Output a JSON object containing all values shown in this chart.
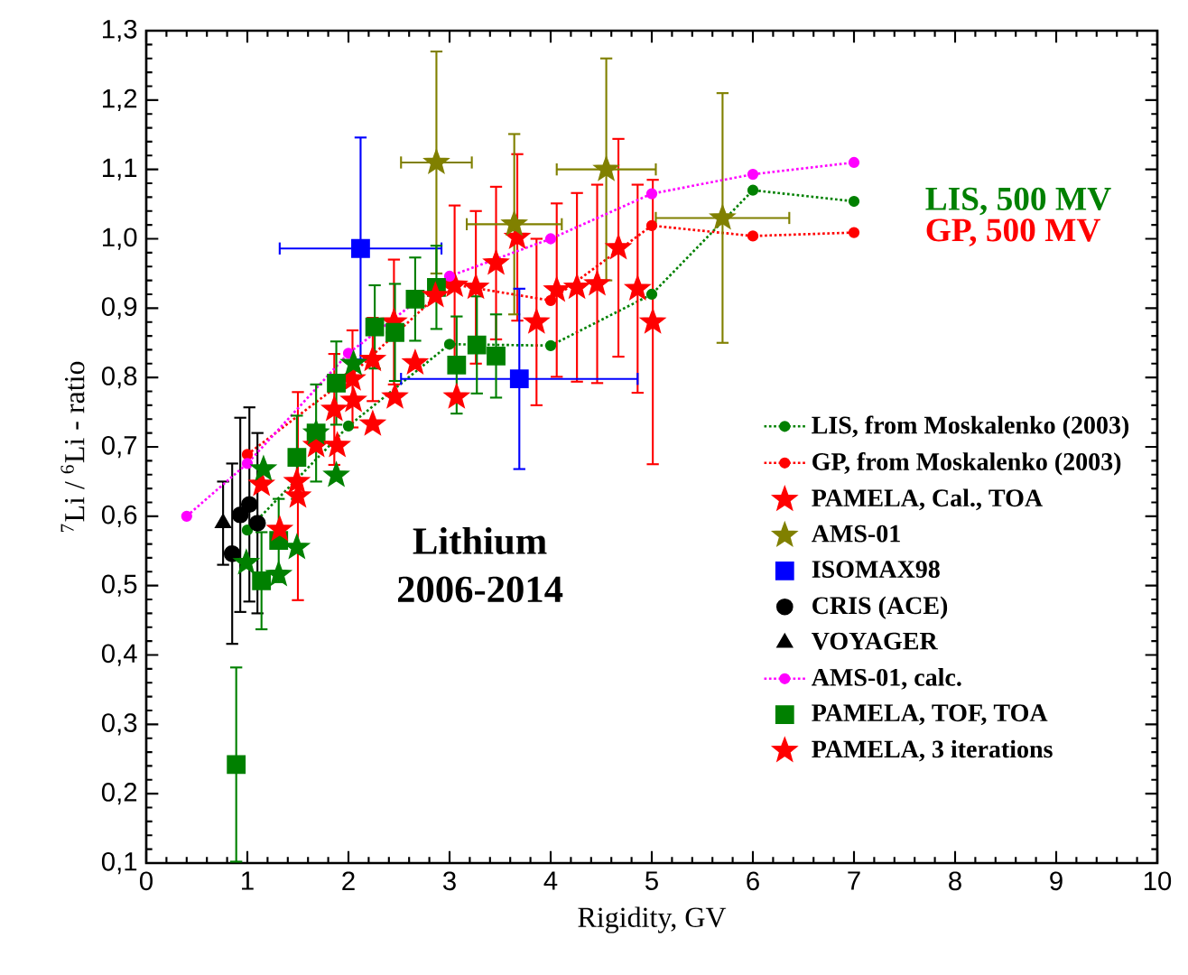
{
  "chart_data": {
    "type": "scatter",
    "xlabel": "Rigidity, GV",
    "ylabel": "$^{7}$Li / $^{6}$Li - ratio",
    "xlim": [
      0,
      10
    ],
    "ylim": [
      0.1,
      1.3
    ],
    "xticks": [
      0,
      1,
      2,
      3,
      4,
      5,
      6,
      7,
      8,
      9,
      10
    ],
    "yticks": [
      {
        "value": 0.1,
        "label": "0,1"
      },
      {
        "value": 0.2,
        "label": "0,2"
      },
      {
        "value": 0.3,
        "label": "0,3"
      },
      {
        "value": 0.4,
        "label": "0,4"
      },
      {
        "value": 0.5,
        "label": "0,5"
      },
      {
        "value": 0.6,
        "label": "0,6"
      },
      {
        "value": 0.7,
        "label": "0,7"
      },
      {
        "value": 0.8,
        "label": "0,8"
      },
      {
        "value": 0.9,
        "label": "0,9"
      },
      {
        "value": 1.0,
        "label": "1,0"
      },
      {
        "value": 1.1,
        "label": "1,1"
      },
      {
        "value": 1.2,
        "label": "1,2"
      },
      {
        "value": 1.3,
        "label": "1,3"
      }
    ],
    "grid": false,
    "legend": "right",
    "annotations": [
      {
        "text": "LIS, 500 MV",
        "x": 7,
        "y": 1.054
      },
      {
        "text": "GP, 500 MV",
        "x": 7,
        "y": 1.009
      },
      "Lithium 2006-2014"
    ],
    "series": [
      {
        "name": "LIS, from Moskalenko (2003)",
        "type": "line",
        "line_style": "dotted",
        "marker": "circle",
        "color": "#008000",
        "x": [
          1,
          2,
          3,
          4,
          5,
          6,
          7
        ],
        "values": [
          0.58,
          0.73,
          0.848,
          0.846,
          0.92,
          1.07,
          1.054
        ]
      },
      {
        "name": "GP, from Moskalenko (2003)",
        "type": "line",
        "line_style": "dotted",
        "marker": "circle",
        "color": "#ff0000",
        "x": [
          1,
          2,
          3,
          4,
          5,
          6,
          7
        ],
        "values": [
          0.689,
          0.8,
          0.935,
          0.911,
          1.019,
          1.004,
          1.009
        ]
      },
      {
        "name": "PAMELA, Cal., TOA",
        "marker": "star",
        "color": "#ff0000",
        "x": [
          1.5,
          1.86,
          2.04,
          2.24,
          2.45,
          3.05,
          3.26,
          3.46,
          3.67,
          3.86,
          4.06,
          4.26,
          4.46,
          4.67,
          4.86,
          5.01
        ],
        "values": [
          0.629,
          0.754,
          0.798,
          0.826,
          0.88,
          0.933,
          0.93,
          0.965,
          1.002,
          0.88,
          0.926,
          0.93,
          0.935,
          0.987,
          0.928,
          0.88
        ],
        "errors": [
          0.15,
          0.08,
          0.07,
          0.06,
          0.09,
          0.115,
          0.11,
          0.11,
          0.12,
          0.12,
          0.125,
          0.136,
          0.143,
          0.157,
          0.15,
          0.205
        ]
      },
      {
        "name": "AMS-01",
        "marker": "star",
        "color": "#808000",
        "x": [
          2.87,
          3.64,
          4.55,
          5.7
        ],
        "values": [
          1.11,
          1.021,
          1.1,
          1.03
        ],
        "errors": [
          0.16,
          0.13,
          0.16,
          0.18
        ],
        "xerrors": [
          0.35,
          0.47,
          0.49,
          0.66
        ]
      },
      {
        "name": "ISOMAX98",
        "marker": "square",
        "color": "#0000ff",
        "x": [
          2.12,
          3.69
        ],
        "values": [
          0.986,
          0.798
        ],
        "errors": [
          0.16,
          0.13
        ],
        "xerrors": [
          0.8,
          1.17
        ]
      },
      {
        "name": "CRIS (ACE)",
        "marker": "circle",
        "color": "#000000",
        "x": [
          0.85,
          0.93,
          1.02,
          1.1
        ],
        "values": [
          0.546,
          0.602,
          0.617,
          0.59
        ],
        "errors": [
          0.13,
          0.14,
          0.14,
          0.13
        ]
      },
      {
        "name": "VOYAGER",
        "marker": "triangle",
        "color": "#000000",
        "x": [
          0.76
        ],
        "values": [
          0.59
        ],
        "errors": [
          0.06
        ]
      },
      {
        "name": "AMS-01, calc.",
        "type": "line",
        "line_style": "dotted",
        "marker": "circle",
        "color": "#ff00ff",
        "x": [
          0.4,
          1,
          2,
          3,
          4,
          5,
          6,
          7
        ],
        "values": [
          0.6,
          0.676,
          0.835,
          0.946,
          1.0,
          1.065,
          1.093,
          1.11
        ]
      },
      {
        "name": "PAMELA, TOF, TOA",
        "marker": "square",
        "color": "#008000",
        "x": [
          0.89,
          1.14,
          1.31,
          1.49,
          1.68,
          1.88,
          2.26,
          2.46,
          2.66,
          2.87,
          3.07,
          3.27,
          3.46
        ],
        "values": [
          0.242,
          0.507,
          0.565,
          0.685,
          0.72,
          0.792,
          0.873,
          0.865,
          0.913,
          0.93,
          0.818,
          0.847,
          0.831
        ],
        "errors": [
          0.14,
          0.07,
          0.06,
          0.06,
          0.07,
          0.06,
          0.06,
          0.07,
          0.06,
          0.06,
          0.07,
          0.07,
          0.06
        ]
      },
      {
        "name": "PAMELA, 3 iterations",
        "marker": "star",
        "color": "#ff0000",
        "x": [
          1.14,
          1.32,
          1.49,
          1.68,
          1.89,
          2.05,
          2.24,
          2.46,
          2.66,
          2.86,
          3.07
        ],
        "values": [
          0.646,
          0.581,
          0.65,
          0.702,
          0.702,
          0.767,
          0.733,
          0.772,
          0.821,
          0.918,
          0.772
        ]
      },
      {
        "marker": "star",
        "color": "#008000",
        "x": [
          0.99,
          1.16,
          1.31,
          1.49,
          1.68,
          1.88,
          2.05
        ],
        "values": [
          0.533,
          0.668,
          0.516,
          0.555,
          0.72,
          0.659,
          0.82
        ]
      }
    ]
  }
}
